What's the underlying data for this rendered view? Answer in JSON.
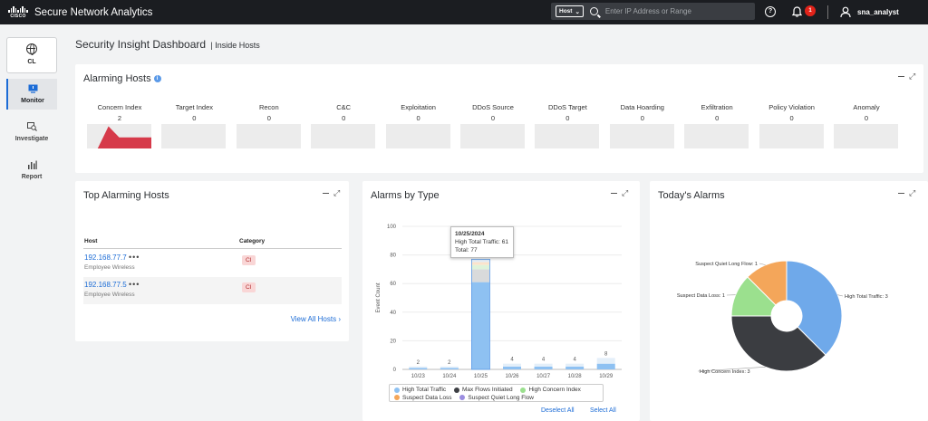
{
  "app": {
    "logo_text": "CISCO",
    "title": "Secure Network Analytics",
    "host_select": "Host",
    "search_placeholder": "Enter IP Address or Range",
    "help": "?",
    "notification_count": "1",
    "username": "sna_analyst"
  },
  "sidebar": {
    "cl_label": "CL",
    "items": [
      {
        "label": "Monitor",
        "icon": "monitor-icon",
        "active": true
      },
      {
        "label": "Investigate",
        "icon": "investigate-icon",
        "active": false
      },
      {
        "label": "Report",
        "icon": "report-icon",
        "active": false
      }
    ]
  },
  "page": {
    "title": "Security Insight Dashboard",
    "subtitle": "| Inside Hosts"
  },
  "alarming_hosts": {
    "title": "Alarming Hosts",
    "info": "i",
    "indices": [
      {
        "label": "Concern Index",
        "value": "2"
      },
      {
        "label": "Target Index",
        "value": "0"
      },
      {
        "label": "Recon",
        "value": "0"
      },
      {
        "label": "C&C",
        "value": "0"
      },
      {
        "label": "Exploitation",
        "value": "0"
      },
      {
        "label": "DDoS Source",
        "value": "0"
      },
      {
        "label": "DDoS Target",
        "value": "0"
      },
      {
        "label": "Data Hoarding",
        "value": "0"
      },
      {
        "label": "Exfiltration",
        "value": "0"
      },
      {
        "label": "Policy Violation",
        "value": "0"
      },
      {
        "label": "Anomaly",
        "value": "0"
      }
    ]
  },
  "top_alarming_hosts": {
    "title": "Top Alarming Hosts",
    "col_host": "Host",
    "col_category": "Category",
    "rows": [
      {
        "ip": "192.168.77.7",
        "dots": "•••",
        "group": "Employee Wireless",
        "category": "CI"
      },
      {
        "ip": "192.168.77.5",
        "dots": "•••",
        "group": "Employee Wireless",
        "category": "CI"
      }
    ],
    "view_all": "View All Hosts ›"
  },
  "alarms_by_type": {
    "title": "Alarms by Type",
    "tooltip": {
      "date": "10/25/2024",
      "line1": "High Total Traffic: 61",
      "line2": "Total: 77"
    },
    "legend": [
      {
        "label": "High Total Traffic",
        "color": "#8ec1f2"
      },
      {
        "label": "Max Flows Initiated",
        "color": "#3d3f43"
      },
      {
        "label": "High Concern Index",
        "color": "#9be08e"
      },
      {
        "label": "Suspect Data Loss",
        "color": "#f4a65a"
      },
      {
        "label": "Suspect Quiet Long Flow",
        "color": "#9b8de0"
      }
    ],
    "deselect_all": "Deselect All",
    "select_all": "Select All"
  },
  "todays_alarms": {
    "title": "Today's Alarms"
  },
  "chart_data": [
    {
      "type": "area",
      "title": "Concern Index",
      "x": [
        0,
        1,
        2,
        3,
        4,
        5,
        6
      ],
      "y": [
        0,
        0,
        2,
        1,
        1,
        1,
        1
      ],
      "color": "#d63a4a"
    },
    {
      "type": "bar",
      "title": "Alarms by Type",
      "ylabel": "Event Count",
      "xlabel": "",
      "ylim": [
        0,
        100
      ],
      "yticks": [
        0,
        20,
        40,
        60,
        80,
        100
      ],
      "categories": [
        "10/23",
        "10/24",
        "10/25",
        "10/26",
        "10/27",
        "10/28",
        "10/29"
      ],
      "totals": [
        2,
        2,
        77,
        4,
        4,
        4,
        8
      ],
      "total_labels": [
        "2",
        "2",
        "",
        "4",
        "4",
        "4",
        "8"
      ],
      "series": [
        {
          "name": "High Total Traffic",
          "color": "#8ec1f2",
          "values": [
            1,
            1,
            61,
            2,
            2,
            2,
            4
          ]
        },
        {
          "name": "Max Flows Initiated",
          "color": "#d9dadb",
          "values": [
            0,
            0,
            9,
            0,
            0,
            0,
            0
          ]
        },
        {
          "name": "High Concern Index",
          "color": "#dff3da",
          "values": [
            0,
            0,
            3,
            0,
            0,
            0,
            0
          ]
        },
        {
          "name": "Suspect Data Loss",
          "color": "#fbe3cc",
          "values": [
            0,
            0,
            2,
            0,
            0,
            0,
            0
          ]
        },
        {
          "name": "Suspect Quiet Long Flow",
          "color": "#e4eff9",
          "values": [
            1,
            1,
            2,
            2,
            2,
            2,
            4
          ]
        }
      ]
    },
    {
      "type": "pie",
      "title": "Today's Alarms",
      "donut": true,
      "slices": [
        {
          "label": "High Total Traffic: 3",
          "value": 3,
          "color": "#6fa9ea"
        },
        {
          "label": "High Concern Index: 3",
          "value": 3,
          "color": "#3b3d41"
        },
        {
          "label": "Suspect Data Loss: 1",
          "value": 1,
          "color": "#9be08e"
        },
        {
          "label": "Suspect Quiet Long Flow: 1",
          "value": 1,
          "color": "#f4a65a"
        }
      ]
    }
  ]
}
